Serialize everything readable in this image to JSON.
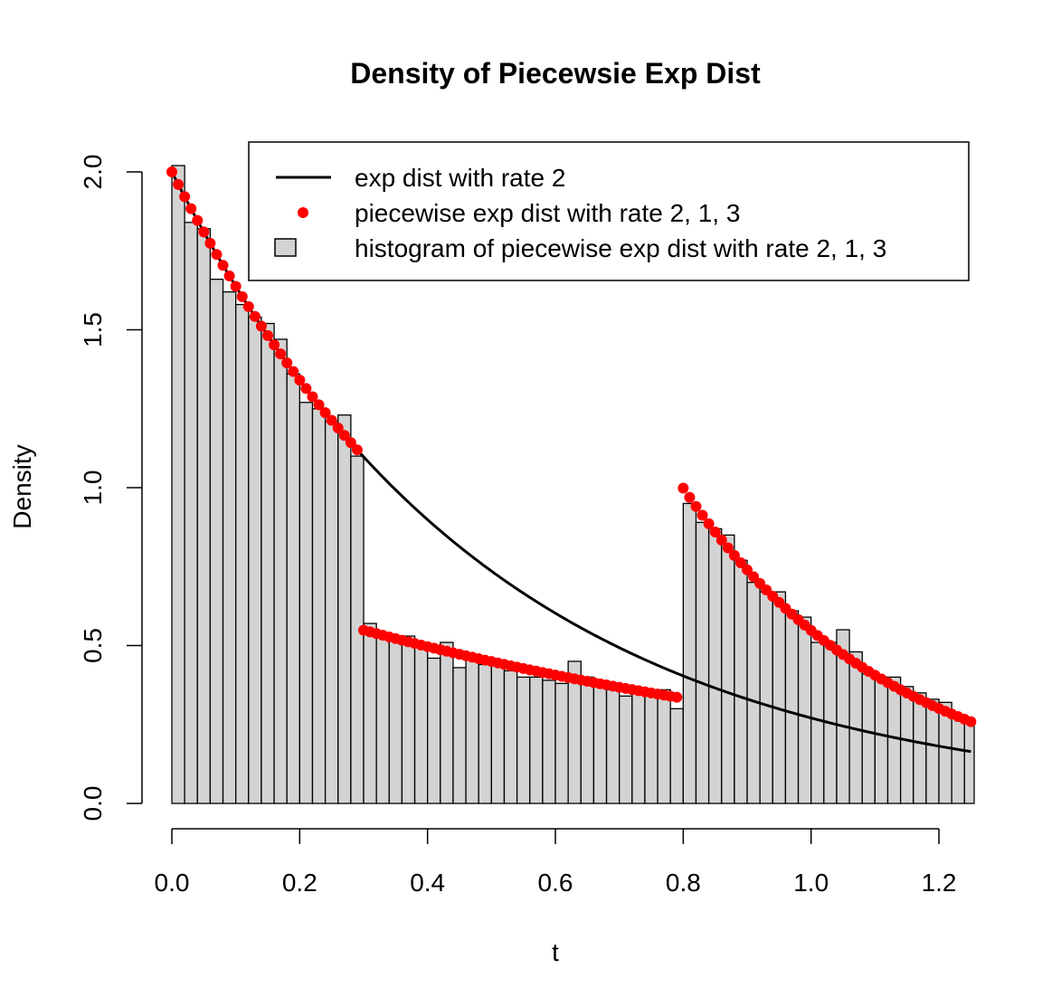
{
  "chart_data": {
    "type": "bar",
    "title": "Density of Piecewsie Exp Dist",
    "xlabel": "t",
    "ylabel": "Density",
    "xlim": [
      0,
      1.25
    ],
    "ylim": [
      0,
      2.0
    ],
    "x_ticks": [
      "0.0",
      "0.2",
      "0.4",
      "0.6",
      "0.8",
      "1.0",
      "1.2"
    ],
    "y_ticks": [
      "0.0",
      "0.5",
      "1.0",
      "1.5",
      "2.0"
    ],
    "legend_position": "top-right",
    "histogram": {
      "name": "histogram of piecewise exp dist with rate 2, 1, 3",
      "bin_width": 0.02,
      "bin_start": 0.0,
      "fill": "#d3d3d3",
      "densities": [
        2.02,
        1.84,
        1.82,
        1.66,
        1.62,
        1.58,
        1.54,
        1.52,
        1.47,
        1.36,
        1.27,
        1.25,
        1.21,
        1.23,
        1.1,
        0.57,
        0.53,
        0.52,
        0.53,
        0.5,
        0.46,
        0.51,
        0.43,
        0.47,
        0.44,
        0.44,
        0.42,
        0.4,
        0.4,
        0.39,
        0.38,
        0.45,
        0.4,
        0.37,
        0.36,
        0.34,
        0.35,
        0.35,
        0.36,
        0.3,
        0.95,
        0.89,
        0.87,
        0.85,
        0.77,
        0.7,
        0.67,
        0.67,
        0.61,
        0.59,
        0.51,
        0.51,
        0.55,
        0.48,
        0.41,
        0.4,
        0.4,
        0.37,
        0.35,
        0.33,
        0.32,
        0.27,
        0.26
      ]
    },
    "series": [
      {
        "name": "exp dist with rate 2",
        "type": "line",
        "color": "#000000",
        "function": "2*exp(-2*t)"
      },
      {
        "name": "piecewise exp dist with rate 2, 1, 3",
        "type": "points",
        "color": "#ff0000",
        "segments": [
          {
            "from": 0.0,
            "to": 0.3,
            "rate": 2
          },
          {
            "from": 0.3,
            "to": 0.8,
            "rate": 1
          },
          {
            "from": 0.8,
            "to": 1.25,
            "rate": 3
          }
        ]
      }
    ]
  }
}
